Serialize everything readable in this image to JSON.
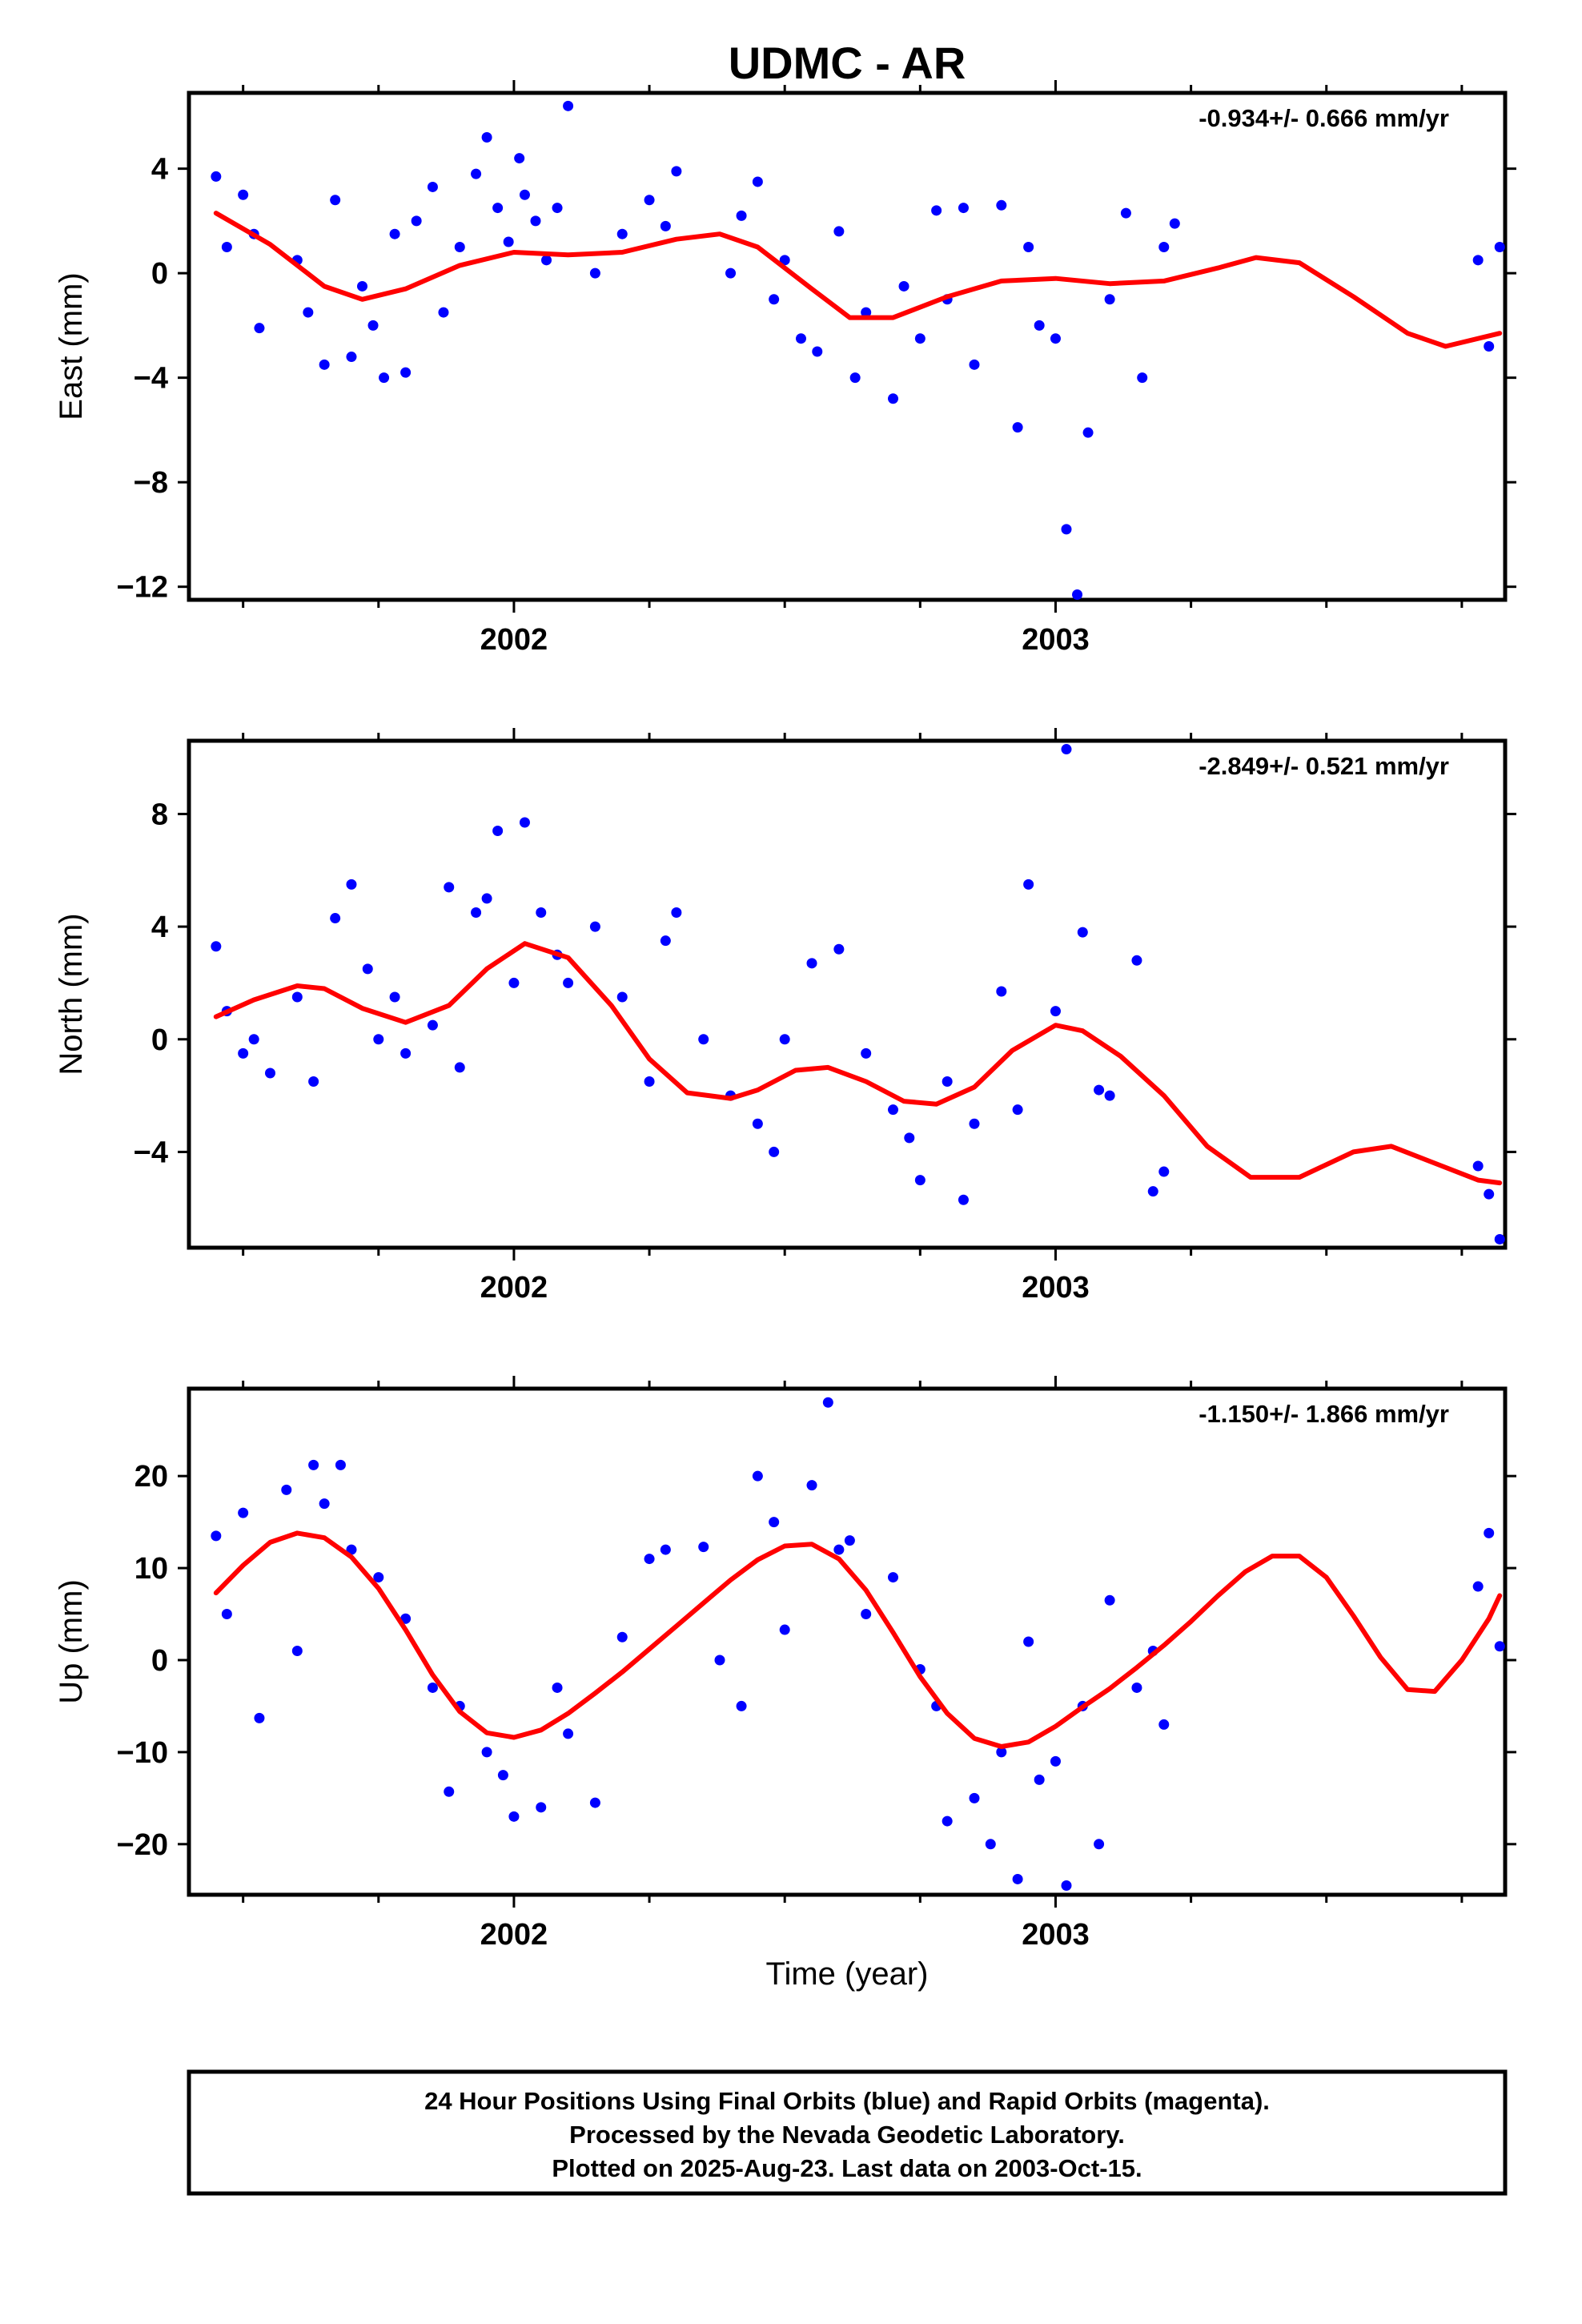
{
  "title": "UDMC - AR",
  "xlabel": "Time (year)",
  "caption": [
    "24 Hour Positions Using Final Orbits (blue) and Rapid Orbits (magenta).",
    "Processed by the Nevada Geodetic Laboratory.",
    "Plotted on 2025-Aug-23. Last data on 2003-Oct-15."
  ],
  "colors": {
    "final_orbit_points": "#0000ff",
    "model_fit": "#ff0000",
    "frame": "#000000"
  },
  "chart_data": [
    {
      "type": "scatter",
      "ylabel": "East (mm)",
      "rate_text": "-0.934+/- 0.666 mm/yr",
      "xlim": [
        2001.4,
        2003.83
      ],
      "ylim": [
        -12.5,
        6.9
      ],
      "x_major_ticks": [
        2002,
        2003
      ],
      "x_minor_ticks": [
        2001.5,
        2001.75,
        2002.25,
        2002.5,
        2002.75,
        2003.25,
        2003.5,
        2003.75
      ],
      "yticks": [
        4,
        0,
        -4,
        -8,
        -12
      ],
      "ytick_labels": [
        "4",
        "0",
        "−4",
        "−8",
        "−12"
      ],
      "series": [
        {
          "kind": "points",
          "color": "#0000ff",
          "x": [
            2001.45,
            2001.47,
            2001.5,
            2001.52,
            2001.53,
            2001.6,
            2001.62,
            2001.65,
            2001.67,
            2001.7,
            2001.72,
            2001.74,
            2001.76,
            2001.78,
            2001.8,
            2001.82,
            2001.85,
            2001.87,
            2001.9,
            2001.93,
            2001.95,
            2001.97,
            2001.99,
            2002.01,
            2002.02,
            2002.04,
            2002.06,
            2002.08,
            2002.1,
            2002.15,
            2002.2,
            2002.25,
            2002.28,
            2002.3,
            2002.4,
            2002.42,
            2002.45,
            2002.48,
            2002.5,
            2002.53,
            2002.56,
            2002.6,
            2002.63,
            2002.65,
            2002.7,
            2002.72,
            2002.75,
            2002.78,
            2002.8,
            2002.83,
            2002.85,
            2002.9,
            2002.93,
            2002.95,
            2002.97,
            2003.0,
            2003.02,
            2003.04,
            2003.06,
            2003.1,
            2003.13,
            2003.16,
            2003.2,
            2003.22,
            2003.78,
            2003.8,
            2003.82
          ],
          "y": [
            3.7,
            1.0,
            3.0,
            1.5,
            -2.1,
            0.5,
            -1.5,
            -3.5,
            2.8,
            -3.2,
            -0.5,
            -2.0,
            -4.0,
            1.5,
            -3.8,
            2.0,
            3.3,
            -1.5,
            1.0,
            3.8,
            5.2,
            2.5,
            1.2,
            4.4,
            3.0,
            2.0,
            0.5,
            2.5,
            6.4,
            0.0,
            1.5,
            2.8,
            1.8,
            3.9,
            0.0,
            2.2,
            3.5,
            -1.0,
            0.5,
            -2.5,
            -3.0,
            1.6,
            -4.0,
            -1.5,
            -4.8,
            -0.5,
            -2.5,
            2.4,
            -1.0,
            2.5,
            -3.5,
            2.6,
            -5.9,
            1.0,
            -2.0,
            -2.5,
            -9.8,
            -12.3,
            -6.1,
            -1.0,
            2.3,
            -4.0,
            1.0,
            1.9,
            0.5,
            -2.8,
            1.0
          ]
        },
        {
          "kind": "line",
          "color": "#ff0000",
          "name": "",
          "x": [
            2001.45,
            2001.55,
            2001.65,
            2001.72,
            2001.8,
            2001.9,
            2002.0,
            2002.1,
            2002.2,
            2002.3,
            2002.38,
            2002.45,
            2002.55,
            2002.62,
            2002.7,
            2002.8,
            2002.9,
            2003.0,
            2003.1,
            2003.2,
            2003.3,
            2003.37,
            2003.45,
            2003.55,
            2003.65,
            2003.72,
            2003.82
          ],
          "y": [
            2.3,
            1.1,
            -0.5,
            -1.0,
            -0.6,
            0.3,
            0.8,
            0.7,
            0.8,
            1.3,
            1.5,
            1.0,
            -0.6,
            -1.7,
            -1.7,
            -0.9,
            -0.3,
            -0.2,
            -0.4,
            -0.3,
            0.2,
            0.6,
            0.4,
            -0.9,
            -2.3,
            -2.8,
            -2.3
          ]
        }
      ]
    },
    {
      "type": "scatter",
      "ylabel": "North (mm)",
      "rate_text": "-2.849+/- 0.521 mm/yr",
      "xlim": [
        2001.4,
        2003.83
      ],
      "ylim": [
        -7.4,
        10.6
      ],
      "x_major_ticks": [
        2002,
        2003
      ],
      "x_minor_ticks": [
        2001.5,
        2001.75,
        2002.25,
        2002.5,
        2002.75,
        2003.25,
        2003.5,
        2003.75
      ],
      "yticks": [
        8,
        4,
        0,
        -4
      ],
      "ytick_labels": [
        "8",
        "4",
        "0",
        "−4"
      ],
      "series": [
        {
          "kind": "points",
          "color": "#0000ff",
          "x": [
            2001.45,
            2001.47,
            2001.5,
            2001.52,
            2001.55,
            2001.6,
            2001.63,
            2001.67,
            2001.7,
            2001.73,
            2001.75,
            2001.78,
            2001.8,
            2001.85,
            2001.88,
            2001.9,
            2001.93,
            2001.95,
            2001.97,
            2002.0,
            2002.02,
            2002.05,
            2002.08,
            2002.1,
            2002.15,
            2002.2,
            2002.25,
            2002.28,
            2002.3,
            2002.35,
            2002.4,
            2002.45,
            2002.48,
            2002.5,
            2002.55,
            2002.6,
            2002.65,
            2002.7,
            2002.73,
            2002.75,
            2002.8,
            2002.83,
            2002.85,
            2002.9,
            2002.93,
            2002.95,
            2003.0,
            2003.02,
            2003.05,
            2003.08,
            2003.1,
            2003.15,
            2003.18,
            2003.2,
            2003.78,
            2003.8,
            2003.82
          ],
          "y": [
            3.3,
            1.0,
            -0.5,
            0.0,
            -1.2,
            1.5,
            -1.5,
            4.3,
            5.5,
            2.5,
            0.0,
            1.5,
            -0.5,
            0.5,
            5.4,
            -1.0,
            4.5,
            5.0,
            7.4,
            2.0,
            7.7,
            4.5,
            3.0,
            2.0,
            4.0,
            1.5,
            -1.5,
            3.5,
            4.5,
            0.0,
            -2.0,
            -3.0,
            -4.0,
            0.0,
            2.7,
            3.2,
            -0.5,
            -2.5,
            -3.5,
            -5.0,
            -1.5,
            -5.7,
            -3.0,
            1.7,
            -2.5,
            5.5,
            1.0,
            10.3,
            3.8,
            -1.8,
            -2.0,
            2.8,
            -5.4,
            -4.7,
            -4.5,
            -5.5,
            -7.1
          ]
        },
        {
          "kind": "line",
          "color": "#ff0000",
          "name": "",
          "x": [
            2001.45,
            2001.52,
            2001.6,
            2001.65,
            2001.72,
            2001.8,
            2001.88,
            2001.95,
            2002.02,
            2002.1,
            2002.18,
            2002.25,
            2002.32,
            2002.4,
            2002.45,
            2002.52,
            2002.58,
            2002.65,
            2002.72,
            2002.78,
            2002.85,
            2002.92,
            2003.0,
            2003.05,
            2003.12,
            2003.2,
            2003.28,
            2003.36,
            2003.45,
            2003.55,
            2003.62,
            2003.7,
            2003.78,
            2003.82
          ],
          "y": [
            0.8,
            1.4,
            1.9,
            1.8,
            1.1,
            0.6,
            1.2,
            2.5,
            3.4,
            2.9,
            1.2,
            -0.7,
            -1.9,
            -2.1,
            -1.8,
            -1.1,
            -1.0,
            -1.5,
            -2.2,
            -2.3,
            -1.7,
            -0.4,
            0.5,
            0.3,
            -0.6,
            -2.0,
            -3.8,
            -4.9,
            -4.9,
            -4.0,
            -3.8,
            -4.4,
            -5.0,
            -5.1
          ]
        }
      ]
    },
    {
      "type": "scatter",
      "ylabel": "Up (mm)",
      "rate_text": "-1.150+/- 1.866 mm/yr",
      "xlim": [
        2001.4,
        2003.83
      ],
      "ylim": [
        -25.5,
        29.5
      ],
      "x_major_ticks": [
        2002,
        2003
      ],
      "x_minor_ticks": [
        2001.5,
        2001.75,
        2002.25,
        2002.5,
        2002.75,
        2003.25,
        2003.5,
        2003.75
      ],
      "yticks": [
        20,
        10,
        0,
        -10,
        -20
      ],
      "ytick_labels": [
        "20",
        "10",
        "0",
        "−10",
        "−20"
      ],
      "series": [
        {
          "kind": "points",
          "color": "#0000ff",
          "x": [
            2001.45,
            2001.47,
            2001.5,
            2001.53,
            2001.58,
            2001.6,
            2001.63,
            2001.65,
            2001.68,
            2001.7,
            2001.75,
            2001.8,
            2001.85,
            2001.88,
            2001.9,
            2001.95,
            2001.98,
            2002.0,
            2002.05,
            2002.08,
            2002.1,
            2002.15,
            2002.2,
            2002.25,
            2002.28,
            2002.35,
            2002.38,
            2002.42,
            2002.45,
            2002.48,
            2002.5,
            2002.55,
            2002.58,
            2002.6,
            2002.62,
            2002.65,
            2002.7,
            2002.75,
            2002.78,
            2002.8,
            2002.85,
            2002.88,
            2002.9,
            2002.93,
            2002.95,
            2002.97,
            2003.0,
            2003.02,
            2003.05,
            2003.08,
            2003.1,
            2003.15,
            2003.18,
            2003.2,
            2003.78,
            2003.8,
            2003.82
          ],
          "y": [
            13.5,
            5.0,
            16.0,
            -6.3,
            18.5,
            1.0,
            21.2,
            17.0,
            21.2,
            12.0,
            9.0,
            4.5,
            -3.0,
            -14.3,
            -5.0,
            -10.0,
            -12.5,
            -17.0,
            -16.0,
            -3.0,
            -8.0,
            -15.5,
            2.5,
            11.0,
            12.0,
            12.3,
            0.0,
            -5.0,
            20.0,
            15.0,
            3.3,
            19.0,
            28.0,
            12.0,
            13.0,
            5.0,
            9.0,
            -1.0,
            -5.0,
            -17.5,
            -15.0,
            -20.0,
            -10.0,
            -23.8,
            2.0,
            -13.0,
            -11.0,
            -24.5,
            -5.0,
            -20.0,
            6.5,
            -3.0,
            1.0,
            -7.0,
            8.0,
            13.8,
            1.5
          ]
        },
        {
          "kind": "line",
          "color": "#ff0000",
          "name": "",
          "x": [
            2001.45,
            2001.5,
            2001.55,
            2001.6,
            2001.65,
            2001.7,
            2001.75,
            2001.8,
            2001.85,
            2001.9,
            2001.95,
            2002.0,
            2002.05,
            2002.1,
            2002.15,
            2002.2,
            2002.25,
            2002.3,
            2002.35,
            2002.4,
            2002.45,
            2002.5,
            2002.55,
            2002.6,
            2002.65,
            2002.7,
            2002.75,
            2002.8,
            2002.85,
            2002.9,
            2002.95,
            2003.0,
            2003.05,
            2003.1,
            2003.15,
            2003.2,
            2003.25,
            2003.3,
            2003.35,
            2003.4,
            2003.45,
            2003.5,
            2003.55,
            2003.6,
            2003.65,
            2003.7,
            2003.75,
            2003.8,
            2003.82
          ],
          "y": [
            7.3,
            10.3,
            12.8,
            13.8,
            13.3,
            11.2,
            7.8,
            3.3,
            -1.6,
            -5.6,
            -7.9,
            -8.4,
            -7.6,
            -5.8,
            -3.6,
            -1.3,
            1.2,
            3.7,
            6.2,
            8.7,
            10.9,
            12.4,
            12.6,
            11.0,
            7.6,
            3.0,
            -1.8,
            -5.8,
            -8.5,
            -9.4,
            -8.9,
            -7.2,
            -5.1,
            -3.1,
            -0.8,
            1.6,
            4.2,
            7.0,
            9.6,
            11.3,
            11.3,
            9.0,
            4.8,
            0.3,
            -3.2,
            -3.4,
            0.0,
            4.5,
            7.0
          ]
        }
      ]
    }
  ]
}
